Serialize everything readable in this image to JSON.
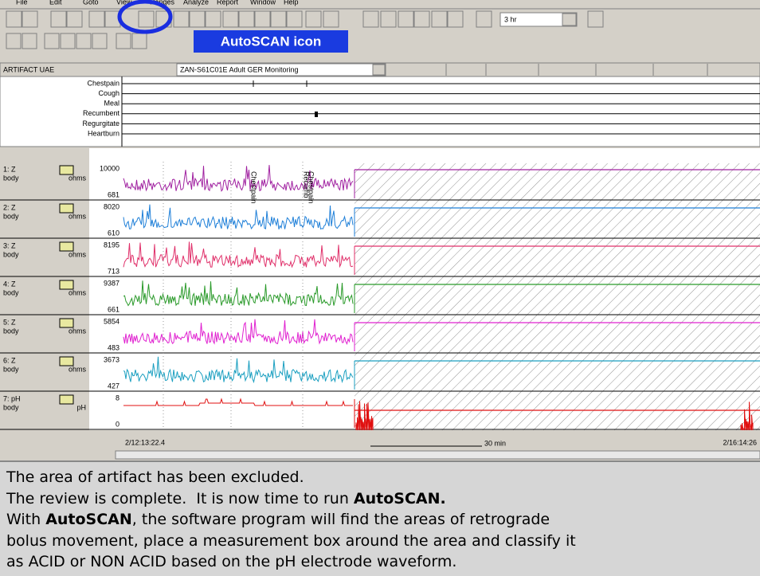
{
  "menu": [
    "File",
    "Edit",
    "Goto",
    "View",
    "Ranges",
    "Analyze",
    "Report",
    "Window",
    "Help"
  ],
  "toolbar": {
    "time_range": "3 hr"
  },
  "callout": "AutoSCAN icon",
  "status_bar": {
    "mode": "ARTIFACT UAE",
    "study": "ZAN-S61C01E  Adult GER Monitoring"
  },
  "events": [
    "Chestpain",
    "Cough",
    "Meal",
    "Recumbent",
    "Regurgitate",
    "Heartburn"
  ],
  "trace_annotations": [
    "Chestpain",
    "Recumb",
    "Chestpain"
  ],
  "channels": [
    {
      "name": "1: Z",
      "site": "body",
      "unit": "ohms",
      "max": 10000,
      "min": 681,
      "color": "#a020a0"
    },
    {
      "name": "2: Z",
      "site": "body",
      "unit": "ohms",
      "max": 8020,
      "min": 610,
      "color": "#1e7fd8"
    },
    {
      "name": "3: Z",
      "site": "body",
      "unit": "ohms",
      "max": 8195,
      "min": 713,
      "color": "#e0306a"
    },
    {
      "name": "4: Z",
      "site": "body",
      "unit": "ohms",
      "max": 9387,
      "min": 661,
      "color": "#2a9a2a"
    },
    {
      "name": "5: Z",
      "site": "body",
      "unit": "ohms",
      "max": 5854,
      "min": 483,
      "color": "#e020d0"
    },
    {
      "name": "6: Z",
      "site": "body",
      "unit": "ohms",
      "max": 3673,
      "min": 427,
      "color": "#1a9fc0"
    },
    {
      "name": "7: pH",
      "site": "body",
      "unit": "pH",
      "max": 8,
      "min": 0,
      "color": "#e01010"
    }
  ],
  "time_axis": {
    "start": "2/12:13:22.4",
    "span": "30 min",
    "end": "2/16:14:26"
  },
  "caption": {
    "lines": [
      [
        {
          "text": "The area of artifact has been excluded.",
          "bold": false
        }
      ],
      [
        {
          "text": "The review is complete.  It is now time to run ",
          "bold": false
        },
        {
          "text": "AutoSCAN.",
          "bold": true
        }
      ],
      [
        {
          "text": "With ",
          "bold": false
        },
        {
          "text": "AutoSCAN",
          "bold": true
        },
        {
          "text": ", the software program will find the areas of retrograde",
          "bold": false
        }
      ],
      [
        {
          "text": "bolus movement, place a measurement box around the area and classify it",
          "bold": false
        }
      ],
      [
        {
          "text": "as ACID or NON ACID based on the pH electrode waveform.",
          "bold": false
        }
      ]
    ]
  }
}
